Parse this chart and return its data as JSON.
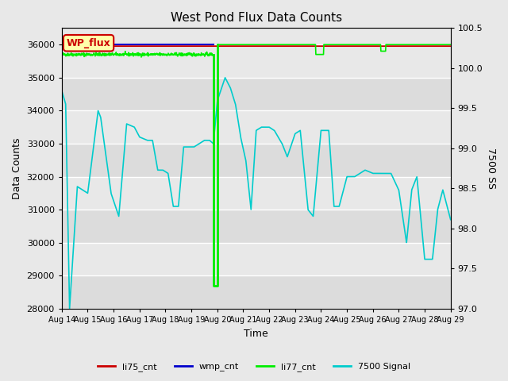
{
  "title": "West Pond Flux Data Counts",
  "xlabel": "Time",
  "ylabel_left": "Data Counts",
  "ylabel_right": "7500 SS",
  "ylim_left": [
    28000,
    36500
  ],
  "ylim_right": [
    97.0,
    100.5
  ],
  "yticks_left": [
    28000,
    29000,
    30000,
    31000,
    32000,
    33000,
    34000,
    35000,
    36000
  ],
  "yticks_right": [
    97.0,
    97.5,
    98.0,
    98.5,
    99.0,
    99.5,
    100.0,
    100.5
  ],
  "fig_facecolor": "#e8e8e8",
  "plot_facecolor": "#e8e8e8",
  "annotation_box": {
    "text": "WP_flux",
    "facecolor": "#ffffaa",
    "edgecolor": "#cc0000",
    "textcolor": "#cc0000",
    "fontsize": 9,
    "fontweight": "bold"
  },
  "colors": {
    "li75_cnt": "#cc0000",
    "wmp_cnt": "#0000cc",
    "li77_cnt": "#00ee00",
    "signal_7500": "#00cccc"
  },
  "legend_labels": [
    "li75_cnt",
    "wmp_cnt",
    "li77_cnt",
    "7500 Signal"
  ],
  "legend_colors": [
    "#cc0000",
    "#0000cc",
    "#00ee00",
    "#00cccc"
  ],
  "cyan_keypoints_x": [
    14.0,
    14.15,
    14.3,
    14.6,
    15.0,
    15.4,
    15.5,
    15.9,
    16.2,
    16.5,
    16.8,
    17.0,
    17.3,
    17.5,
    17.7,
    17.9,
    18.1,
    18.3,
    18.5,
    18.7,
    18.9,
    19.1,
    19.3,
    19.5,
    19.7,
    19.85,
    20.0,
    20.3,
    20.5,
    20.7,
    20.9,
    21.1,
    21.3,
    21.5,
    21.7,
    22.0,
    22.2,
    22.5,
    22.7,
    23.0,
    23.2,
    23.5,
    23.7,
    24.0,
    24.3,
    24.5,
    24.7,
    25.0,
    25.3,
    25.5,
    25.7,
    26.0,
    26.3,
    26.5,
    26.7,
    27.0,
    27.3,
    27.5,
    27.7,
    28.0,
    28.3,
    28.5,
    28.7,
    29.0
  ],
  "cyan_keypoints_y": [
    34600,
    34200,
    28000,
    31700,
    31500,
    34000,
    33800,
    31500,
    30800,
    33600,
    33500,
    33200,
    33100,
    33100,
    32200,
    32200,
    32100,
    31100,
    31100,
    32900,
    32900,
    32900,
    33000,
    33100,
    33100,
    33000,
    34300,
    35000,
    34700,
    34200,
    33200,
    32500,
    31000,
    33400,
    33500,
    33500,
    33400,
    33000,
    32600,
    33300,
    33400,
    31000,
    30800,
    33400,
    33400,
    31100,
    31100,
    32000,
    32000,
    32100,
    32200,
    32100,
    32100,
    32100,
    32100,
    31600,
    30000,
    31600,
    32000,
    29500,
    29500,
    31000,
    31600,
    30700
  ]
}
